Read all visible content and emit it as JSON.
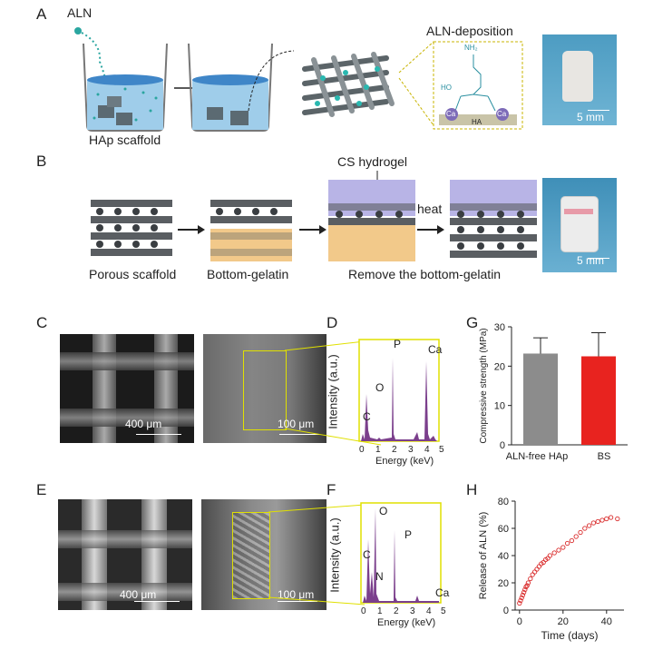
{
  "panels": {
    "A": {
      "letter": "A",
      "aln_label": "ALN",
      "hap_label": "HAp scaffold",
      "deposition_title": "ALN-deposition",
      "ha_label": "HA",
      "ca_label": "Ca",
      "nh2_label": "NH₂",
      "ho_label": "HO",
      "scale": "5 mm"
    },
    "B": {
      "letter": "B",
      "cs_label": "CS hydrogel",
      "heat_label": "heat",
      "porous_label": "Porous scaffold",
      "bottom_label": "Bottom-gelatin",
      "remove_label": "Remove the bottom-gelatin",
      "scale": "5 mm"
    },
    "C": {
      "letter": "C",
      "scale1": "400 μm",
      "scale2": "100 μm"
    },
    "D": {
      "letter": "D",
      "ylabel": "Intensity (a.u.)",
      "xlabel": "Energy (keV)",
      "ticks": [
        "0",
        "1",
        "2",
        "3",
        "4",
        "5"
      ],
      "peaks": [
        "C",
        "O",
        "P",
        "Ca"
      ]
    },
    "E": {
      "letter": "E",
      "scale1": "400 μm",
      "scale2": "100 μm"
    },
    "F": {
      "letter": "F",
      "ylabel": "Intensity (a.u.)",
      "xlabel": "Energy (keV)",
      "ticks": [
        "0",
        "1",
        "2",
        "3",
        "4",
        "5"
      ],
      "peaks": [
        "C",
        "N",
        "O",
        "P",
        "Ca"
      ]
    },
    "G": {
      "letter": "G"
    },
    "H": {
      "letter": "H"
    }
  },
  "colors": {
    "bar_grey": "#8c8c8c",
    "bar_red": "#e8231f",
    "eds_purple": "#7b3f8c",
    "release_red": "#d92b2b",
    "hydrogel": "#b8b4e6",
    "gelatin": "#f2c98a"
  },
  "chart_data": [
    {
      "type": "bar",
      "ylabel": "Compressive strength (MPa)",
      "categories": [
        "ALN-free HAp",
        "BS"
      ],
      "values": [
        23.2,
        22.5
      ],
      "errors": [
        4.0,
        6.0
      ],
      "ylim": [
        0,
        30
      ],
      "yticks": [
        0,
        10,
        20,
        30
      ]
    },
    {
      "type": "scatter",
      "xlabel": "Time (days)",
      "ylabel": "Release of ALN (%)",
      "xlim": [
        -2,
        48
      ],
      "ylim": [
        0,
        80
      ],
      "xticks": [
        0,
        20,
        40
      ],
      "yticks": [
        0,
        20,
        40,
        60,
        80
      ],
      "x": [
        0,
        0.5,
        1,
        1.5,
        2,
        2.5,
        3,
        3.5,
        4,
        5,
        6,
        7,
        8,
        9,
        10,
        11,
        12,
        13,
        14,
        16,
        18,
        20,
        22,
        24,
        26,
        28,
        30,
        32,
        34,
        36,
        38,
        40,
        42,
        45
      ],
      "y": [
        5,
        7,
        9,
        11,
        13,
        15,
        17,
        18,
        20,
        23,
        26,
        28,
        30,
        32,
        34,
        35,
        37,
        38,
        40,
        42,
        44,
        46,
        49,
        51,
        54,
        57,
        60,
        62,
        64,
        65,
        66,
        67,
        68,
        67
      ]
    }
  ]
}
